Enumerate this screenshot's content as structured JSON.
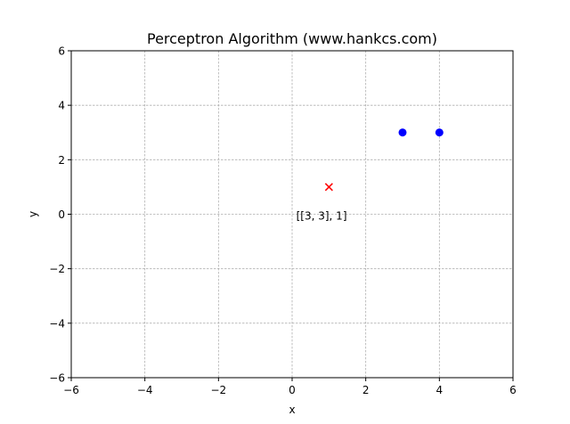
{
  "chart_data": {
    "type": "scatter",
    "title": "Perceptron Algorithm (www.hankcs.com)",
    "xlabel": "x",
    "ylabel": "y",
    "xlim": [
      -6,
      6
    ],
    "ylim": [
      -6,
      6
    ],
    "xticks": [
      -6,
      -4,
      -2,
      0,
      2,
      4,
      6
    ],
    "yticks": [
      -6,
      -4,
      -2,
      0,
      2,
      4,
      6
    ],
    "xtick_labels": [
      "−6",
      "−4",
      "−2",
      "0",
      "2",
      "4",
      "6"
    ],
    "ytick_labels": [
      "−6",
      "−4",
      "−2",
      "0",
      "2",
      "4",
      "6"
    ],
    "grid": true,
    "series": [
      {
        "marker": "circle",
        "color": "#0000ff",
        "points": [
          {
            "x": 3,
            "y": 3
          },
          {
            "x": 4,
            "y": 3
          }
        ]
      },
      {
        "marker": "x",
        "color": "#ff0000",
        "points": [
          {
            "x": 1,
            "y": 1
          }
        ]
      }
    ],
    "annotations": [
      {
        "text": "[[3, 3], 1]",
        "x": 0.8,
        "y": -0.2
      }
    ]
  }
}
